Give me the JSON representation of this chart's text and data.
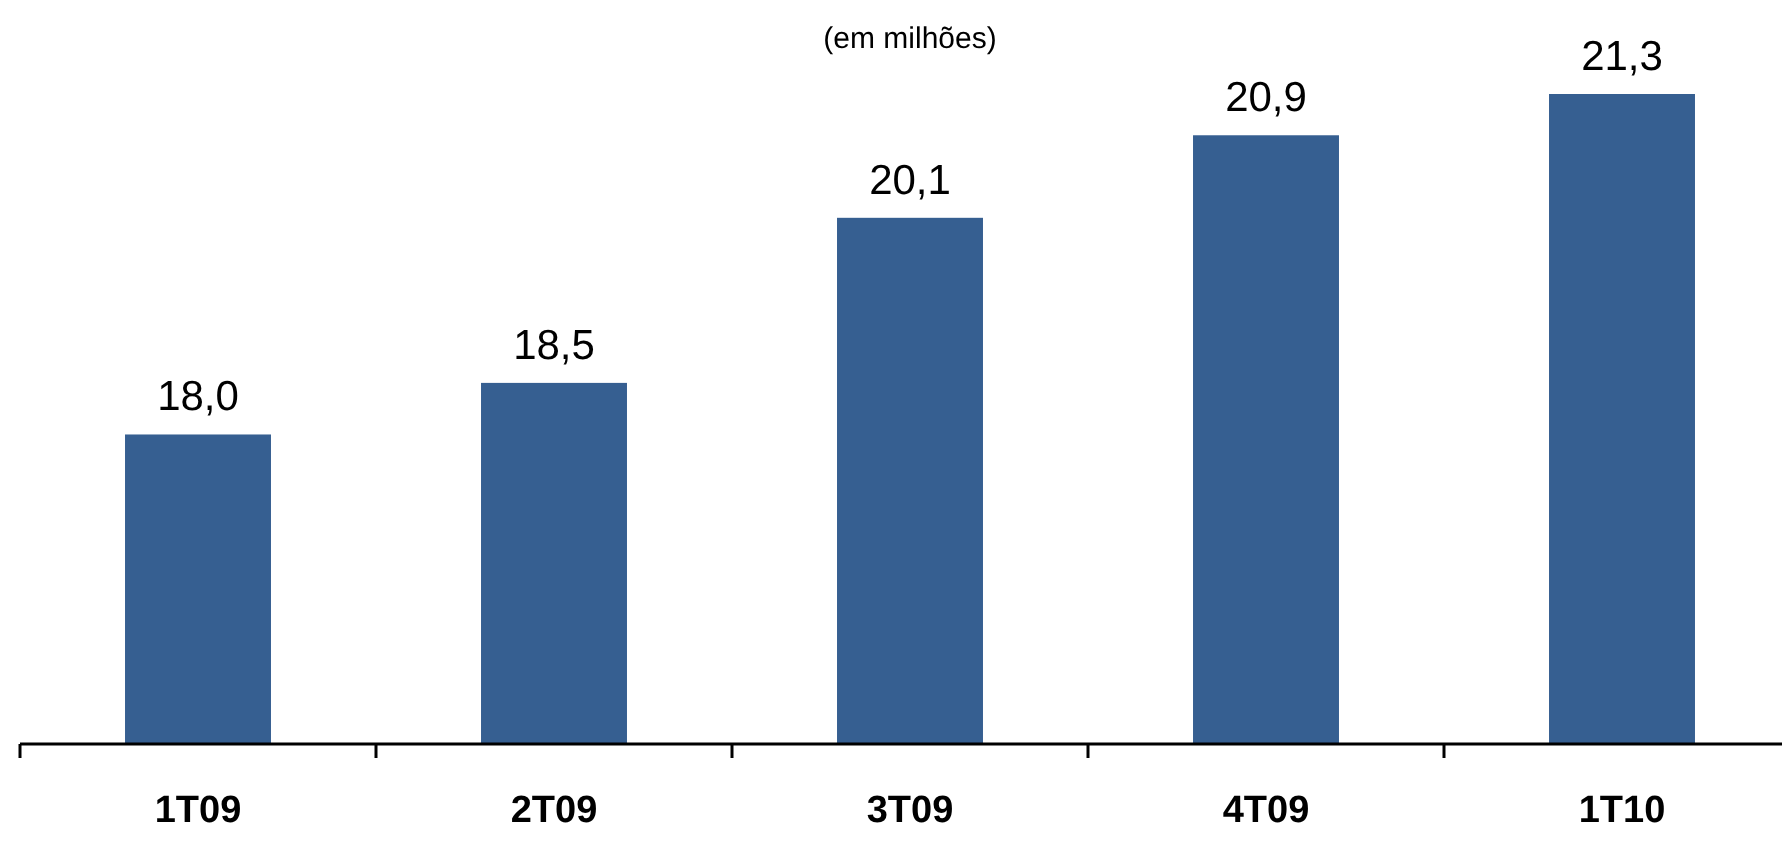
{
  "chart_data": {
    "type": "bar",
    "subtitle": "(em milhões)",
    "categories": [
      "1T09",
      "2T09",
      "3T09",
      "4T09",
      "1T10"
    ],
    "values": [
      18.0,
      18.5,
      20.1,
      20.9,
      21.3
    ],
    "value_labels": [
      "18,0",
      "18,5",
      "20,1",
      "20,9",
      "21,3"
    ],
    "color": "#365f91",
    "ylim": [
      15,
      21.3
    ],
    "tick_labels": "x"
  }
}
